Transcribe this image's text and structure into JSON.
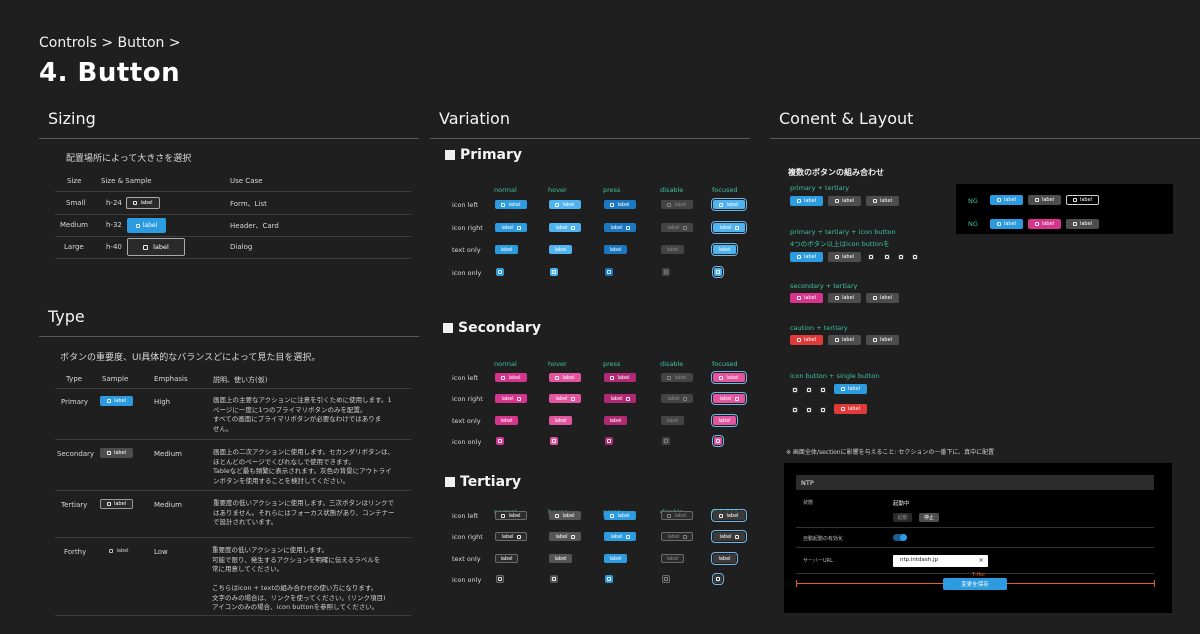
{
  "breadcrumb": "Controls > Button >",
  "page_title": "4. Button",
  "colors": {
    "primary": "#2d9be0",
    "primary_hover": "#4fb4ef",
    "primary_press": "#1a78c2",
    "secondary": "#d6358e",
    "secondary_hover": "#e3559f",
    "secondary_press": "#b12974",
    "tertiary": "#4d4d4d",
    "disable": "#444444",
    "caution": "#e03a3a",
    "focus_ring": "#6fb7e8",
    "accent_text": "#3fc2a0",
    "slider": "#e0651e"
  },
  "sizing": {
    "title": "Sizing",
    "description": "配置場所によって大きさを選択",
    "headers": [
      "Size",
      "Size & Sample",
      "Use Case"
    ],
    "rows": [
      {
        "size": "Small",
        "height": "h-24",
        "label": "label",
        "use": "Form、List"
      },
      {
        "size": "Medium",
        "height": "h-32",
        "label": "label",
        "use": "Header、Card"
      },
      {
        "size": "Large",
        "height": "h-40",
        "label": "label",
        "use": "Dialog"
      }
    ]
  },
  "type": {
    "title": "Type",
    "description": "ボタンの重要度、UI具体的なバランスどによって見た目を選択。",
    "headers": [
      "Type",
      "Sample",
      "Emphasis",
      "説明、使い方(仮)"
    ],
    "rows": [
      {
        "type": "Primary",
        "label": "label",
        "emphasis": "High",
        "desc": [
          "画面上の主要なアクションに注意を引くために使用します。1",
          "ページに一度に1つのプライマリボタンのみを配置。",
          "すべての画面にプライマリボタンが必要なわけではありま",
          "せん。"
        ]
      },
      {
        "type": "Secondary",
        "label": "label",
        "emphasis": "Medium",
        "desc": [
          "画面上の二次アクションに使用します。セカンダリボタンは、",
          "ほとんどのページでくびれなしで使用できます。",
          "Tableなど最も頻繁に表示されます。灰色の背景にアウトライ",
          "ンボタンを使用することを検討してください。"
        ]
      },
      {
        "type": "Tertiary",
        "label": "label",
        "emphasis": "Medium",
        "desc": [
          "重要度の低いアクションに使用します。三次ボタンはリンクで",
          "はありません。それらにはフォーカス状態があり、コンテナー",
          "で設計されています。"
        ]
      },
      {
        "type": "Forthy",
        "label": "label",
        "emphasis": "Low",
        "desc": [
          "重要度の低いアクションに使用します。",
          "可能で限り、発生するアクションを明確に伝えるラベルを",
          "常に用意してください。",
          "",
          "こちらはicon + textの組み合わせの使い方になります。",
          "文字のみの場合は、リンクを使ってください。(リンク項目)",
          "アイコンのみの場合、icon buttonを参照してください。"
        ]
      }
    ]
  },
  "variation": {
    "title": "Variation",
    "columns": [
      "normal",
      "hover",
      "press",
      "disable",
      "focused"
    ],
    "rows": [
      "icon left",
      "icon right",
      "text only",
      "icon only"
    ],
    "btn_label": "label",
    "groups": [
      {
        "name": "Primary"
      },
      {
        "name": "Secondary"
      },
      {
        "name": "Tertiary"
      }
    ]
  },
  "content": {
    "title": "Conent & Layout",
    "heading": "複数のボタンの組み合わせ",
    "btn_label": "label",
    "combos": [
      {
        "label": "primary + tertiary"
      },
      {
        "label": "primary + tertiary + icon button",
        "label2": "4つのボタン以上はicon buttonを"
      },
      {
        "label": "secondary + tertiary"
      },
      {
        "label": "caution + tertiary"
      },
      {
        "label": "icon button + single button"
      }
    ],
    "ng_label": "NG",
    "note": "※ 画面全体/sectionに影響を与えること: セクションの一番下に、真中に配置",
    "ntp": {
      "title": "NTP",
      "status_label": "状態",
      "status_value": "起動中",
      "btn_start": "起動",
      "btn_stop": "停止",
      "auto_label": "自動起動の有効化",
      "server_label": "サーバーURL",
      "server_value": "ntp.intdash.jp",
      "clear_icon": "×",
      "margin_label": "T-Hor",
      "save_label": "変更を保存"
    }
  }
}
